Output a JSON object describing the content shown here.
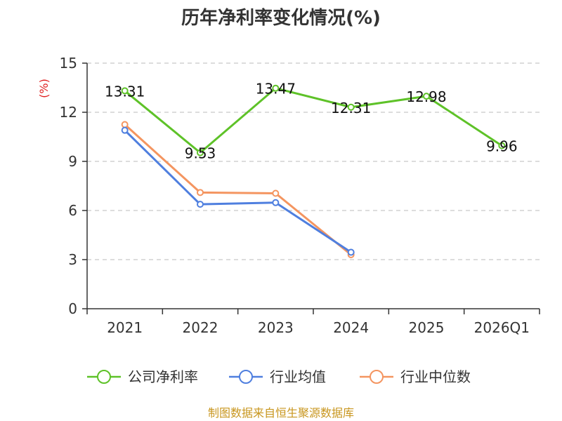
{
  "chart_data": {
    "type": "line",
    "title": "历年净利率变化情况(%)",
    "ylabel": "(%)",
    "categories": [
      "2021",
      "2022",
      "2023",
      "2024",
      "2025",
      "2026Q1"
    ],
    "yticks": [
      "0",
      "3",
      "6",
      "9",
      "12",
      "15"
    ],
    "ylim": [
      0,
      15
    ],
    "grid": true,
    "legend_position": "bottom",
    "series": [
      {
        "name": "公司净利率",
        "color": "#5ec228",
        "values": [
          13.31,
          9.53,
          13.47,
          12.31,
          12.98,
          9.96
        ],
        "labels": [
          "13.31",
          "9.53",
          "13.47",
          "12.31",
          "12.98",
          "9.96"
        ]
      },
      {
        "name": "行业均值",
        "color": "#4f7fdf",
        "values": [
          10.9,
          6.38,
          6.48,
          3.45,
          null,
          null
        ]
      },
      {
        "name": "行业中位数",
        "color": "#f49560",
        "values": [
          11.25,
          7.1,
          7.05,
          3.3,
          null,
          null
        ]
      }
    ]
  },
  "source": "制图数据来自恒生聚源数据库"
}
